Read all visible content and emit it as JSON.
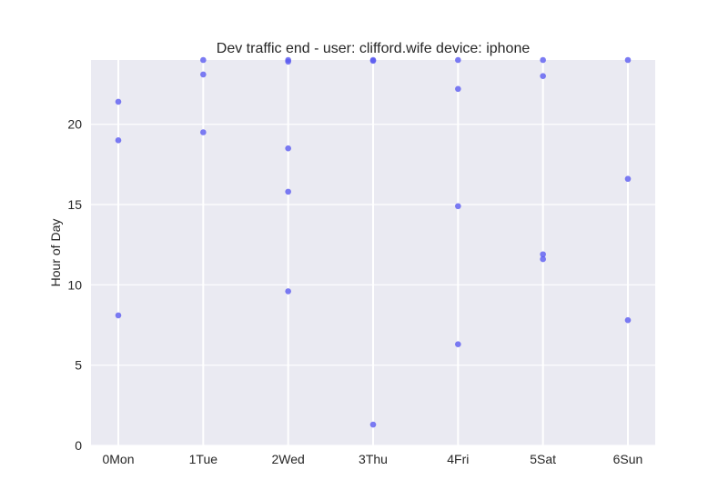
{
  "colors": {
    "plot_background": "#EAEAF2",
    "grid": "#FFFFFF",
    "points": "#5A5AF0",
    "text": "#262626"
  },
  "chart_data": {
    "type": "scatter",
    "title": "Dev traffic end - user: clifford.wife device: iphone",
    "xlabel": "",
    "ylabel": "Hour of Day",
    "x_categories": [
      "0Mon",
      "1Tue",
      "2Wed",
      "3Thu",
      "4Fri",
      "5Sat",
      "6Sun"
    ],
    "y_ticks": [
      "0",
      "5",
      "10",
      "15",
      "20"
    ],
    "ylim": [
      0,
      24
    ],
    "grid": true,
    "points": [
      {
        "x": 0,
        "y": 21.4
      },
      {
        "x": 0,
        "y": 19.0
      },
      {
        "x": 0,
        "y": 8.1
      },
      {
        "x": 1,
        "y": 24.0
      },
      {
        "x": 1,
        "y": 23.1
      },
      {
        "x": 1,
        "y": 19.5
      },
      {
        "x": 2,
        "y": 24.0
      },
      {
        "x": 2,
        "y": 23.9
      },
      {
        "x": 2,
        "y": 18.5
      },
      {
        "x": 2,
        "y": 15.8
      },
      {
        "x": 2,
        "y": 9.6
      },
      {
        "x": 3,
        "y": 24.0
      },
      {
        "x": 3,
        "y": 23.95
      },
      {
        "x": 3,
        "y": 1.3
      },
      {
        "x": 4,
        "y": 24.0
      },
      {
        "x": 4,
        "y": 22.2
      },
      {
        "x": 4,
        "y": 14.9
      },
      {
        "x": 4,
        "y": 6.3
      },
      {
        "x": 5,
        "y": 24.0
      },
      {
        "x": 5,
        "y": 23.0
      },
      {
        "x": 5,
        "y": 11.9
      },
      {
        "x": 5,
        "y": 11.6
      },
      {
        "x": 6,
        "y": 24.0
      },
      {
        "x": 6,
        "y": 16.6
      },
      {
        "x": 6,
        "y": 7.8
      }
    ]
  }
}
